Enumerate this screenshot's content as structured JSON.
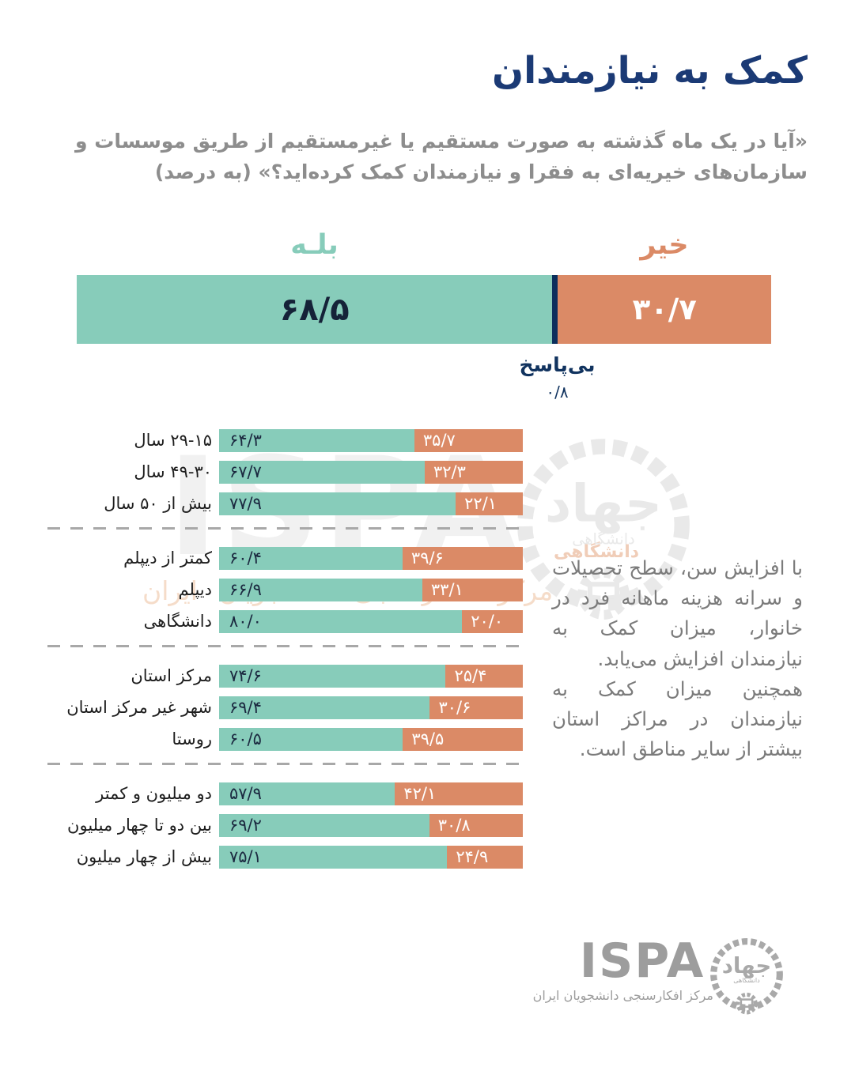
{
  "title": "کمک به نیازمندان",
  "subtitle_line1": "«آیا در یک ماه گذشته به صورت مستقیم یا غیرمستقیم از طریق موسسات و",
  "subtitle_line2": "سازمان‌های خیریه‌ای به فقرا و نیازمندان کمک کرده‌اید؟» (به درصد)",
  "legend": {
    "yes": "بلـه",
    "no": "خیر"
  },
  "na_note": {
    "label": "بی‌پاسخ",
    "value": "۰/۸"
  },
  "side_note": {
    "p1": "با افزایش سن، سطح تحصیلات و سرانه هزینه ماهانه فرد در خانوار، میزان کمک به نیازمندان افزایش می‌یابد.",
    "p2": "همچنین میزان کمک به نیازمندان در مراکز استان بیشتر از سایر مناطق است."
  },
  "watermark": {
    "ispa": "ISPA",
    "tagline": "مرکز افکارسنجی دانشجویان ایران",
    "sub": "دانشگاهی"
  },
  "footer": {
    "ispa": "ISPA",
    "tagline": "مرکز افکارسنجی دانشجویان ایران"
  },
  "emblem": {
    "name": "جهاد",
    "sub": "دانشگاهی"
  },
  "colors": {
    "yes_teal": "#87ccba",
    "no_orange": "#db8a66",
    "na_navy": "#0b2e5c",
    "title_navy": "#1b3a75",
    "gray_text": "#8d8d8d"
  },
  "chart_data": {
    "type": "bar",
    "orientation": "horizontal-stacked",
    "title": "کمک به نیازمندان",
    "question": "«آیا در یک ماه گذشته به صورت مستقیم یا غیرمستقیم از طریق موسسات و سازمان‌های خیریه‌ای به فقرا و نیازمندان کمک کرده‌اید؟» (به درصد)",
    "unit": "percent",
    "series": [
      {
        "name": "بلـه",
        "color": "#87ccba"
      },
      {
        "name": "خیر",
        "color": "#db8a66"
      },
      {
        "name": "بی‌پاسخ",
        "color": "#0b2e5c"
      }
    ],
    "overall": {
      "yes": 68.5,
      "no": 30.7,
      "no_answer": 0.8,
      "yes_label": "۶۸/۵",
      "no_label": "۳۰/۷",
      "no_answer_label": "۰/۸"
    },
    "breakdown": [
      {
        "rows": [
          {
            "label": "۱۵-۲۹ سال",
            "label_display": "۱۵‏-‏۲۹ سال",
            "yes": 64.3,
            "no": 35.7,
            "yes_label": "۶۴/۳",
            "no_label": "۳۵/۷"
          },
          {
            "label": "۳۰-۴۹ سال",
            "label_display": "۳۰‏-‏۴۹ سال",
            "yes": 67.7,
            "no": 32.3,
            "yes_label": "۶۷/۷",
            "no_label": "۳۲/۳"
          },
          {
            "label": "بیش از ۵۰ سال",
            "label_display": "بیش از ۵۰ سال",
            "yes": 77.9,
            "no": 22.1,
            "yes_label": "۷۷/۹",
            "no_label": "۲۲/۱"
          }
        ]
      },
      {
        "rows": [
          {
            "label": "کمتر از دیپلم",
            "label_display": "کمتر از دیپلم",
            "yes": 60.4,
            "no": 39.6,
            "yes_label": "۶۰/۴",
            "no_label": "۳۹/۶"
          },
          {
            "label": "دیپلم",
            "label_display": "دیپلم",
            "yes": 66.9,
            "no": 33.1,
            "yes_label": "۶۶/۹",
            "no_label": "۳۳/۱"
          },
          {
            "label": "دانشگاهی",
            "label_display": "دانشگاهی",
            "yes": 80.0,
            "no": 20.0,
            "yes_label": "۸۰/۰",
            "no_label": "۲۰/۰"
          }
        ]
      },
      {
        "rows": [
          {
            "label": "مرکز استان",
            "label_display": "مرکز استان",
            "yes": 74.6,
            "no": 25.4,
            "yes_label": "۷۴/۶",
            "no_label": "۲۵/۴"
          },
          {
            "label": "شهر غیر مرکز استان",
            "label_display": "شهر غیر مرکز استان",
            "yes": 69.4,
            "no": 30.6,
            "yes_label": "۶۹/۴",
            "no_label": "۳۰/۶"
          },
          {
            "label": "روستا",
            "label_display": "روستا",
            "yes": 60.5,
            "no": 39.5,
            "yes_label": "۶۰/۵",
            "no_label": "۳۹/۵"
          }
        ]
      },
      {
        "rows": [
          {
            "label": "دو میلیون و کمتر",
            "label_display": "دو میلیون و کمتر",
            "yes": 57.9,
            "no": 42.1,
            "yes_label": "۵۷/۹",
            "no_label": "۴۲/۱"
          },
          {
            "label": "بین دو تا چهار میلیون",
            "label_display": "بین دو تا چهار میلیون",
            "yes": 69.2,
            "no": 30.8,
            "yes_label": "۶۹/۲",
            "no_label": "۳۰/۸"
          },
          {
            "label": "بیش از چهار میلیون",
            "label_display": "بیش از چهار میلیون",
            "yes": 75.1,
            "no": 24.9,
            "yes_label": "۷۵/۱",
            "no_label": "۲۴/۹"
          }
        ]
      }
    ],
    "legend_position": "top",
    "grid": false,
    "xlim": [
      0,
      100
    ]
  }
}
